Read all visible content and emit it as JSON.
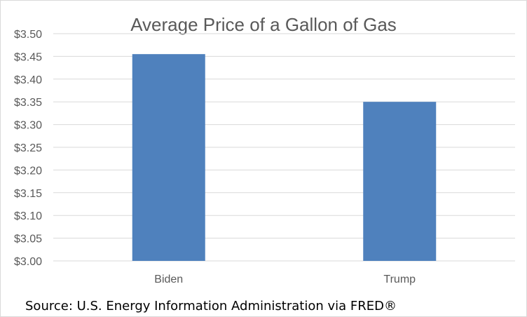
{
  "chart_data": {
    "type": "bar",
    "title": "Average Price of a Gallon of Gas",
    "categories": [
      "Biden",
      "Trump"
    ],
    "values": [
      3.455,
      3.35
    ],
    "ylim": [
      3.0,
      3.5
    ],
    "yticks": [
      "$3.00",
      "$3.05",
      "$3.10",
      "$3.15",
      "$3.20",
      "$3.25",
      "$3.30",
      "$3.35",
      "$3.40",
      "$3.45",
      "$3.50"
    ],
    "ytick_values": [
      3.0,
      3.05,
      3.1,
      3.15,
      3.2,
      3.25,
      3.3,
      3.35,
      3.4,
      3.45,
      3.5
    ],
    "grid": true,
    "legend": "none",
    "xlabel": "",
    "ylabel": "",
    "bar_color": "#4f81bd",
    "grid_color": "#d9d9d9"
  },
  "source_note": "Source: U.S. Energy Information Administration via FRED®"
}
